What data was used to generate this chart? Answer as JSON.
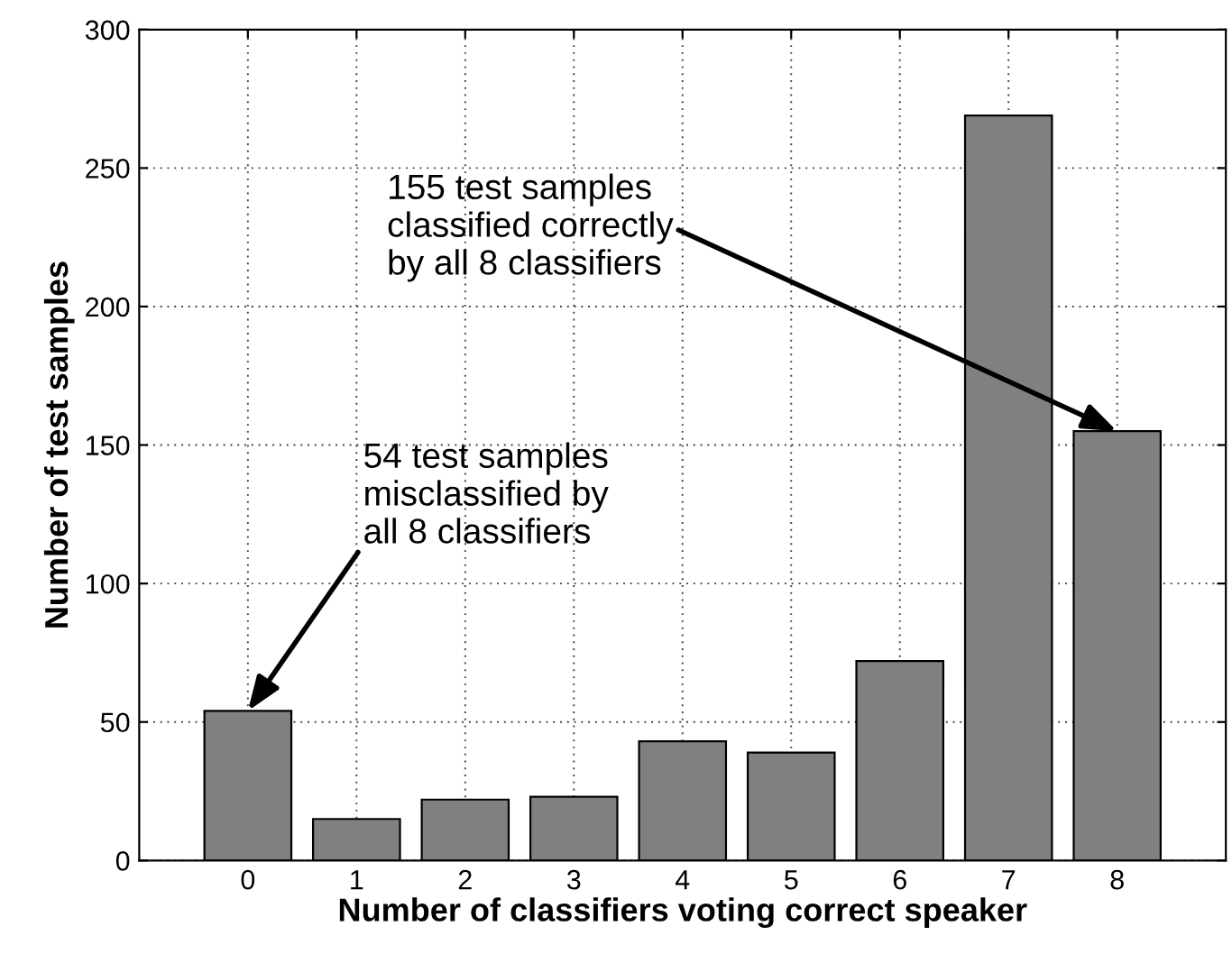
{
  "chart_data": {
    "type": "bar",
    "xlabel": "Number of classifiers voting correct speaker",
    "ylabel": "Number of test samples",
    "categories": [
      "0",
      "1",
      "2",
      "3",
      "4",
      "5",
      "6",
      "7",
      "8"
    ],
    "values": [
      54,
      15,
      22,
      23,
      43,
      39,
      72,
      269,
      155
    ],
    "color": "#808080",
    "ylim": [
      0,
      300
    ],
    "yticks": [
      0,
      50,
      100,
      150,
      200,
      250,
      300
    ],
    "grid": true,
    "annotations": [
      {
        "text": "155 test samples\nclassified correctly\nby all 8 classifiers",
        "x": "8",
        "y": 155
      },
      {
        "text": "54 test samples\nmisclassified by\nall 8 classifiers",
        "x": "0",
        "y": 54
      }
    ]
  }
}
